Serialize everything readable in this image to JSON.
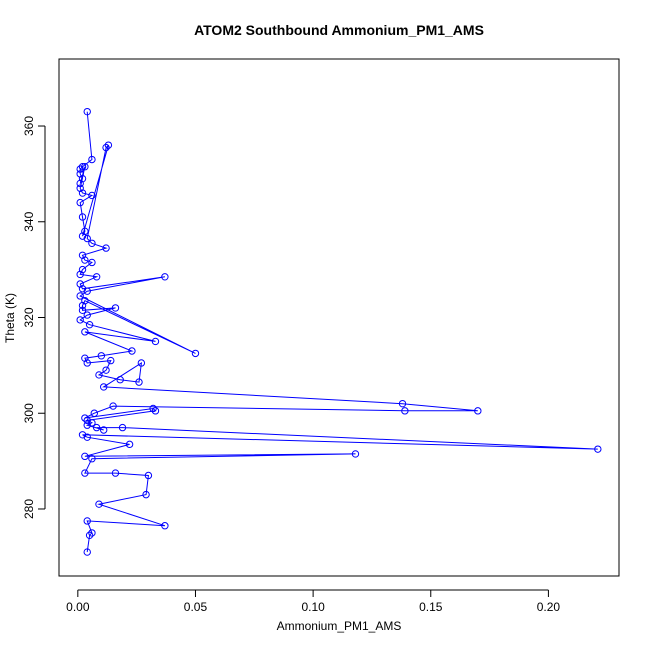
{
  "chart_data": {
    "type": "scatter",
    "title": "ATOM2 Southbound Ammonium_PM1_AMS",
    "xlabel": "Ammonium_PM1_AMS",
    "ylabel": "Theta (K)",
    "xlim": [
      -0.008,
      0.23
    ],
    "ylim": [
      266,
      374
    ],
    "xticks": [
      0.0,
      0.05,
      0.1,
      0.15,
      0.2
    ],
    "xtick_labels": [
      "0.00",
      "0.05",
      "0.10",
      "0.15",
      "0.20"
    ],
    "yticks": [
      280,
      300,
      320,
      340,
      360
    ],
    "ytick_labels": [
      "280",
      "300",
      "320",
      "340",
      "360"
    ],
    "grid": false,
    "legend": "none",
    "marker": "open-circle",
    "connected": true,
    "color": "#0000ff",
    "series": [
      {
        "x": [
          0.004,
          0.006,
          0.002,
          0.001,
          0.001,
          0.002,
          0.001,
          0.003,
          0.001,
          0.002,
          0.006,
          0.001,
          0.002,
          0.003,
          0.002,
          0.013,
          0.012,
          0.004,
          0.006,
          0.012,
          0.002,
          0.003,
          0.006,
          0.002,
          0.001,
          0.008,
          0.001,
          0.002,
          0.037,
          0.004,
          0.001,
          0.05,
          0.003,
          0.002,
          0.002,
          0.016,
          0.004,
          0.001,
          0.005,
          0.033,
          0.003,
          0.023,
          0.01,
          0.003,
          0.004,
          0.014,
          0.012,
          0.009,
          0.018,
          0.026,
          0.027,
          0.011,
          0.138,
          0.17,
          0.139,
          0.015,
          0.007,
          0.003,
          0.032,
          0.033,
          0.004,
          0.006,
          0.004,
          0.011,
          0.008,
          0.019,
          0.221,
          0.002,
          0.004,
          0.022,
          0.003,
          0.118,
          0.006,
          0.003,
          0.016,
          0.03,
          0.029,
          0.009,
          0.037,
          0.004,
          0.006,
          0.005,
          0.004
        ],
        "y": [
          363,
          353,
          351.5,
          351,
          350,
          349,
          348,
          351.5,
          347,
          346,
          345.5,
          344,
          341,
          338,
          337,
          356,
          355.5,
          336.5,
          335.5,
          334.5,
          333,
          332,
          331.5,
          330,
          329,
          328.5,
          327,
          326,
          328.5,
          325.5,
          324.5,
          312.5,
          323.5,
          322.5,
          321.5,
          322,
          320.5,
          319.5,
          318.5,
          315,
          317,
          313,
          312,
          311.5,
          310.5,
          311,
          309,
          308,
          307,
          306.5,
          310.5,
          305.5,
          302,
          300.5,
          300.5,
          301.5,
          300,
          299,
          301,
          300.5,
          298.5,
          298,
          297.5,
          296.5,
          297,
          297,
          292.5,
          295.5,
          295,
          293.5,
          291,
          291.5,
          290.5,
          287.5,
          287.5,
          287,
          283,
          281,
          276.5,
          277.5,
          275,
          274.5,
          271
        ]
      }
    ]
  }
}
